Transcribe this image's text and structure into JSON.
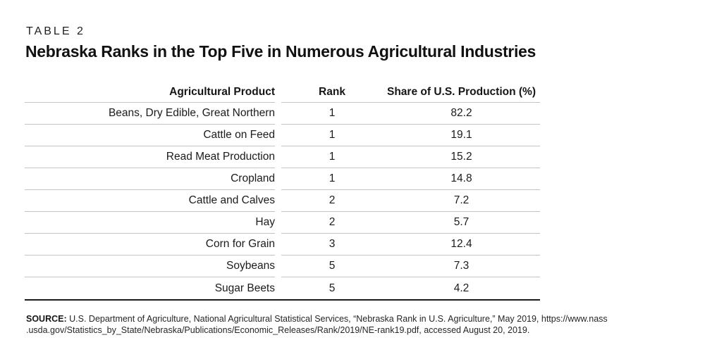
{
  "header": {
    "kicker": "TABLE 2",
    "title": "Nebraska Ranks in the Top Five in Numerous Agricultural Industries"
  },
  "table": {
    "columns": [
      "Agricultural Product",
      "Rank",
      "Share of U.S. Production (%)"
    ],
    "rows": [
      {
        "product": "Beans, Dry Edible, Great Northern",
        "rank": "1",
        "share": "82.2"
      },
      {
        "product": "Cattle on Feed",
        "rank": "1",
        "share": "19.1"
      },
      {
        "product": "Read Meat Production",
        "rank": "1",
        "share": "15.2"
      },
      {
        "product": "Cropland",
        "rank": "1",
        "share": "14.8"
      },
      {
        "product": "Cattle and Calves",
        "rank": "2",
        "share": "7.2"
      },
      {
        "product": "Hay",
        "rank": "2",
        "share": "5.7"
      },
      {
        "product": "Corn for Grain",
        "rank": "3",
        "share": "12.4"
      },
      {
        "product": "Soybeans",
        "rank": "5",
        "share": "7.3"
      },
      {
        "product": "Sugar Beets",
        "rank": "5",
        "share": "4.2"
      }
    ]
  },
  "source": {
    "label": "SOURCE:",
    "line1": "U.S. Department of Agriculture, National Agricultural Statistical Services, “Nebraska Rank in U.S. Agriculture,” May 2019, https://www.nass",
    "line2": ".usda.gov/Statistics_by_State/Nebraska/Publications/Economic_Releases/Rank/2019/NE-rank19.pdf, accessed August 20, 2019."
  },
  "colors": {
    "background": "#ffffff",
    "text": "#1b1b1b",
    "rule_light": "#c4c4c4",
    "rule_dark": "#1b1b1b"
  }
}
